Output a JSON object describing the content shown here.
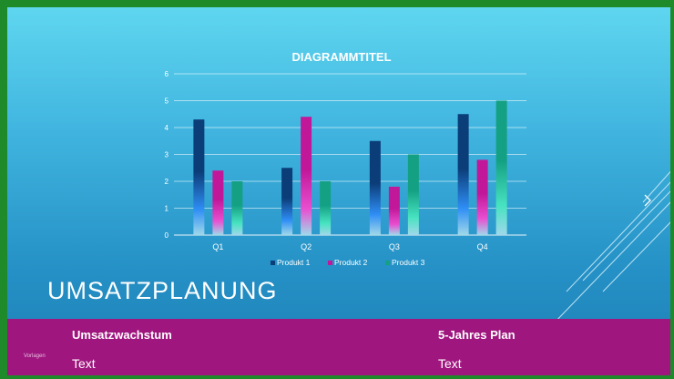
{
  "slide": {
    "title": "UMSATZPLANUNG",
    "footer_left_small": "Vorlagen",
    "section_left": {
      "heading": "Umsatzwachstum",
      "text": "Text"
    },
    "section_right": {
      "heading": "5-Jahres Plan",
      "text": "Text"
    }
  },
  "colors": {
    "border": "#1f8a2a",
    "band": "#a0167f",
    "series": [
      "#0b3d78",
      "#c1189a",
      "#14a183"
    ]
  },
  "chart_data": {
    "type": "bar",
    "title": "DIAGRAMMTITEL",
    "categories": [
      "Q1",
      "Q2",
      "Q3",
      "Q4"
    ],
    "series": [
      {
        "name": "Produkt 1",
        "values": [
          4.3,
          2.5,
          3.5,
          4.5
        ]
      },
      {
        "name": "Produkt 2",
        "values": [
          2.4,
          4.4,
          1.8,
          2.8
        ]
      },
      {
        "name": "Produkt 3",
        "values": [
          2.0,
          2.0,
          3.0,
          5.0
        ]
      }
    ],
    "ylim": [
      0,
      6
    ],
    "yticks": [
      "0",
      "1",
      "2",
      "3",
      "4",
      "5",
      "6"
    ],
    "grid": true,
    "legend": "bottom"
  }
}
